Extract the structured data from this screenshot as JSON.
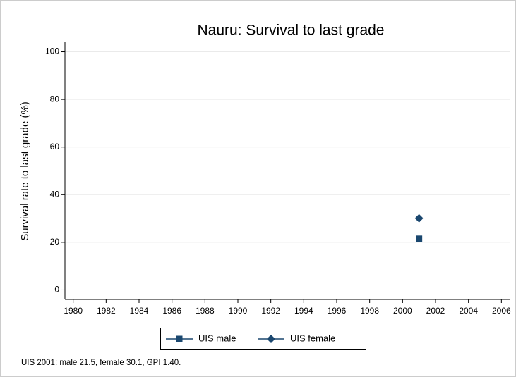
{
  "chart_data": {
    "type": "line",
    "title": "Nauru: Survival to last grade",
    "y_label": "Survival rate to last grade (%)",
    "note": "UIS 2001: male 21.5, female 30.1, GPI 1.40.",
    "series": [
      {
        "name": "UIS male",
        "color": "#1a476f",
        "marker": "square",
        "x": [
          2001
        ],
        "values": [
          21.5
        ]
      },
      {
        "name": "UIS female",
        "color": "#1a476f",
        "marker": "diamond",
        "x": [
          2001
        ],
        "values": [
          30.1
        ]
      }
    ],
    "xlim": [
      1979.5,
      2006.5
    ],
    "xticks": [
      1980,
      1982,
      1984,
      1986,
      1988,
      1990,
      1992,
      1994,
      1996,
      1998,
      2000,
      2002,
      2004,
      2006
    ],
    "ylim": [
      -4,
      104
    ],
    "yticks": [
      0,
      20,
      40,
      60,
      80,
      100
    ],
    "grid": true,
    "legend": "bottom"
  }
}
